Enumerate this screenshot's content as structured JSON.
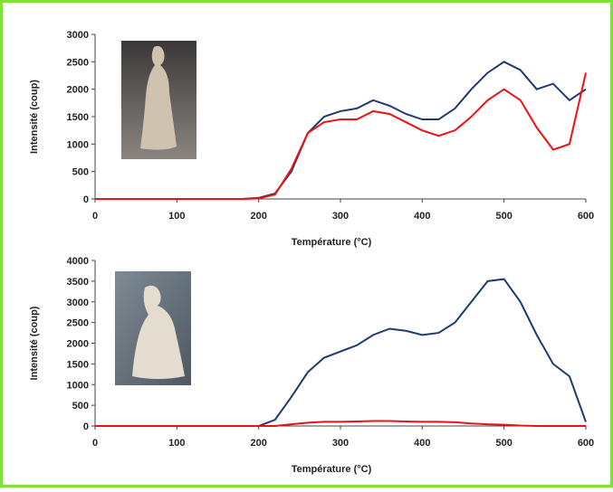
{
  "chart_data": [
    {
      "type": "line",
      "x_label": "Température (°C)",
      "y_label": "Intensité (coup)",
      "x": [
        0,
        20,
        40,
        60,
        80,
        100,
        120,
        140,
        160,
        180,
        200,
        220,
        240,
        260,
        280,
        300,
        320,
        340,
        360,
        380,
        400,
        420,
        440,
        460,
        480,
        500,
        520,
        540,
        560,
        580,
        600
      ],
      "series": [
        {
          "color": "#1f3a6e",
          "values": [
            0,
            0,
            0,
            0,
            0,
            0,
            0,
            0,
            0,
            0,
            20,
            100,
            500,
            1200,
            1500,
            1600,
            1650,
            1800,
            1700,
            1550,
            1450,
            1450,
            1650,
            2000,
            2300,
            2500,
            2350,
            2000,
            2100,
            1800,
            2000
          ]
        },
        {
          "color": "#ee1111",
          "values": [
            0,
            0,
            0,
            0,
            0,
            0,
            0,
            0,
            0,
            0,
            10,
            80,
            550,
            1200,
            1400,
            1450,
            1450,
            1600,
            1550,
            1400,
            1250,
            1150,
            1250,
            1500,
            1800,
            2000,
            1800,
            1300,
            900,
            1000,
            2300
          ]
        }
      ],
      "xlim": [
        0,
        600
      ],
      "xticks": [
        0,
        100,
        200,
        300,
        400,
        500,
        600
      ],
      "ylim": [
        0,
        3000
      ],
      "yticks": [
        0,
        500,
        1000,
        1500,
        2000,
        2500,
        3000
      ]
    },
    {
      "type": "line",
      "x_label": "Température (°C)",
      "y_label": "Intensité (coup)",
      "x": [
        0,
        20,
        40,
        60,
        80,
        100,
        120,
        140,
        160,
        180,
        200,
        220,
        240,
        260,
        280,
        300,
        320,
        340,
        360,
        380,
        400,
        420,
        440,
        460,
        480,
        500,
        520,
        540,
        560,
        580,
        600
      ],
      "series": [
        {
          "color": "#1f3a6e",
          "values": [
            0,
            0,
            0,
            0,
            0,
            0,
            0,
            0,
            0,
            0,
            0,
            150,
            700,
            1300,
            1650,
            1800,
            1950,
            2200,
            2350,
            2300,
            2200,
            2250,
            2500,
            3000,
            3500,
            3550,
            3000,
            2200,
            1500,
            1200,
            100
          ]
        },
        {
          "color": "#ee1111",
          "values": [
            0,
            0,
            0,
            0,
            0,
            0,
            0,
            0,
            0,
            0,
            0,
            0,
            40,
            80,
            100,
            100,
            110,
            120,
            120,
            110,
            100,
            100,
            90,
            60,
            40,
            30,
            10,
            0,
            0,
            0,
            0
          ]
        }
      ],
      "xlim": [
        0,
        600
      ],
      "xticks": [
        0,
        100,
        200,
        300,
        400,
        500,
        600
      ],
      "ylim": [
        0,
        4000
      ],
      "yticks": [
        0,
        500,
        1000,
        1500,
        2000,
        2500,
        3000,
        3500,
        4000
      ]
    }
  ]
}
